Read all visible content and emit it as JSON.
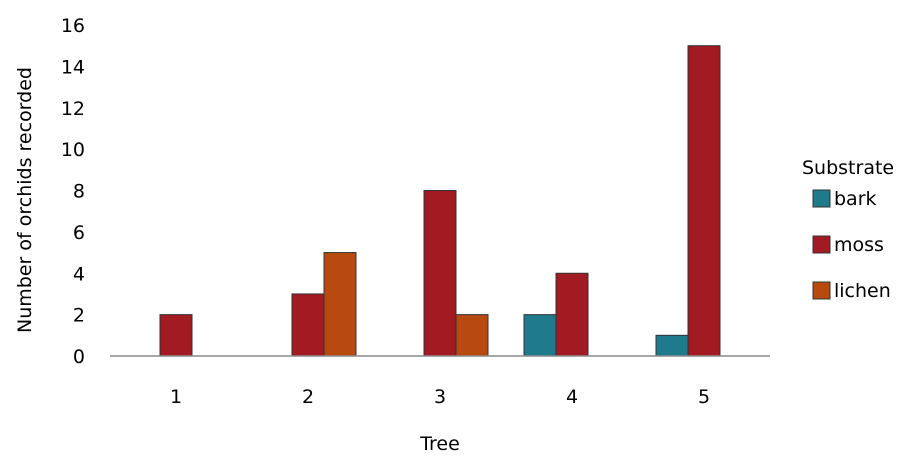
{
  "chart_data": {
    "type": "bar",
    "title": "",
    "xlabel": "Tree",
    "ylabel": "Number of orchids recorded",
    "categories": [
      "1",
      "2",
      "3",
      "4",
      "5"
    ],
    "ylim": [
      0,
      16
    ],
    "yticks": [
      0,
      2,
      4,
      6,
      8,
      10,
      12,
      14,
      16
    ],
    "grid": false,
    "legend": {
      "title": "Substrate",
      "position": "right"
    },
    "series": [
      {
        "name": "bark",
        "color": "#1f7a8c",
        "values": [
          0,
          0,
          0,
          2,
          1
        ]
      },
      {
        "name": "moss",
        "color": "#a21a22",
        "values": [
          2,
          3,
          8,
          4,
          15
        ]
      },
      {
        "name": "lichen",
        "color": "#b84a10",
        "values": [
          0,
          5,
          2,
          0,
          0
        ]
      }
    ]
  }
}
